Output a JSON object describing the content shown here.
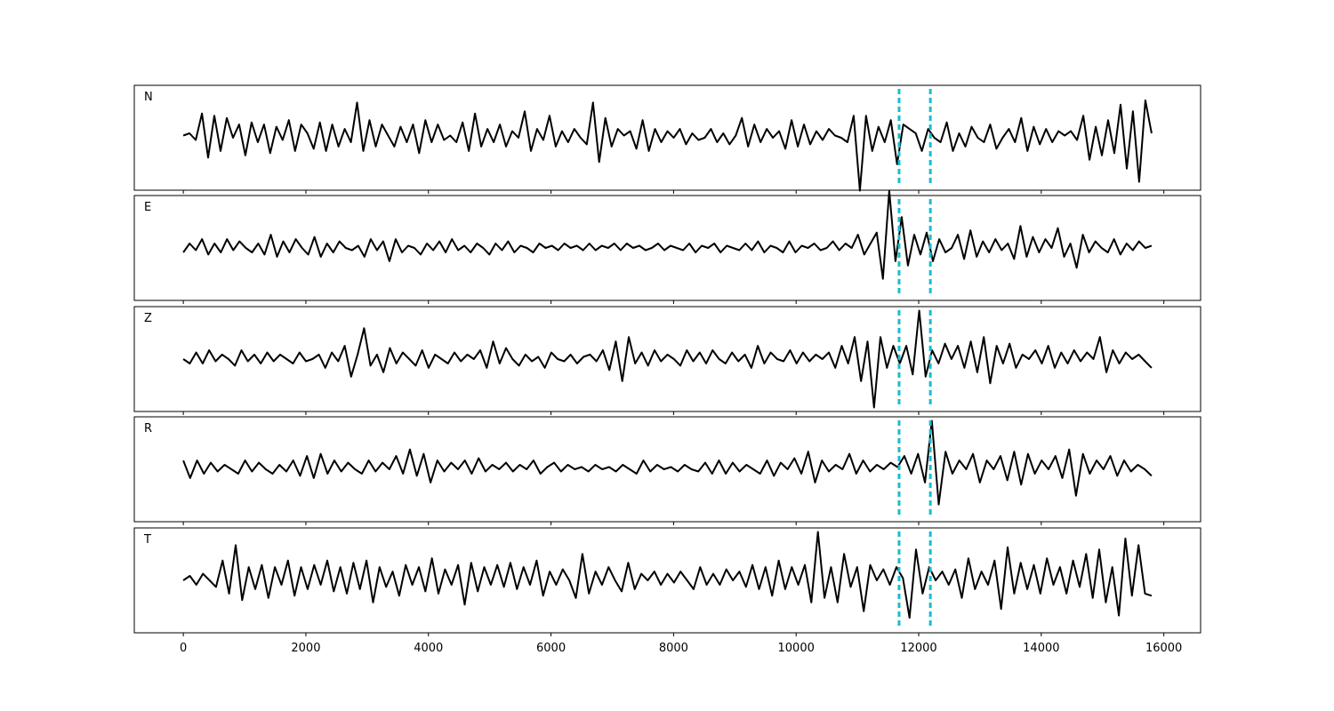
{
  "chart_data": {
    "type": "line",
    "title": "",
    "xlabel": "",
    "ylabel": "",
    "x_range": [
      0,
      15800
    ],
    "xlim": [
      -800,
      16600
    ],
    "x_ticks": [
      0,
      2000,
      4000,
      6000,
      8000,
      10000,
      12000,
      14000,
      16000
    ],
    "x_tick_labels": [
      "0",
      "2000",
      "4000",
      "6000",
      "8000",
      "10000",
      "12000",
      "14000",
      "16000"
    ],
    "y_axis_shown": false,
    "grid": false,
    "legend": "none",
    "markers": [
      11680,
      12190
    ],
    "colors": {
      "trace": "#000000",
      "marker": "#17BECF"
    },
    "panels": [
      {
        "label": "N",
        "y": [
          0.05,
          0.1,
          -0.05,
          0.55,
          -0.45,
          0.5,
          -0.3,
          0.45,
          0.0,
          0.3,
          -0.4,
          0.35,
          -0.1,
          0.3,
          -0.35,
          0.25,
          -0.05,
          0.4,
          -0.3,
          0.3,
          0.1,
          -0.25,
          0.35,
          -0.3,
          0.3,
          -0.2,
          0.2,
          -0.1,
          0.8,
          -0.3,
          0.4,
          -0.2,
          0.3,
          0.05,
          -0.2,
          0.25,
          -0.1,
          0.3,
          -0.35,
          0.4,
          -0.1,
          0.3,
          -0.05,
          0.05,
          -0.1,
          0.35,
          -0.3,
          0.55,
          -0.2,
          0.2,
          -0.1,
          0.3,
          -0.2,
          0.15,
          0.0,
          0.6,
          -0.3,
          0.2,
          -0.05,
          0.5,
          -0.2,
          0.15,
          -0.1,
          0.2,
          0.0,
          -0.15,
          0.8,
          -0.55,
          0.45,
          -0.2,
          0.2,
          0.05,
          0.15,
          -0.25,
          0.4,
          -0.3,
          0.2,
          -0.1,
          0.15,
          0.0,
          0.2,
          -0.15,
          0.1,
          -0.05,
          0.0,
          0.2,
          -0.1,
          0.1,
          -0.15,
          0.05,
          0.45,
          -0.2,
          0.3,
          -0.1,
          0.2,
          0.0,
          0.15,
          -0.25,
          0.4,
          -0.2,
          0.3,
          -0.15,
          0.15,
          -0.05,
          0.2,
          0.05,
          0.0,
          -0.1,
          0.5,
          -1.2,
          0.5,
          -0.3,
          0.25,
          -0.1,
          0.4,
          -0.6,
          0.3,
          0.2,
          0.1,
          -0.3,
          0.2,
          0.0,
          -0.1,
          0.35,
          -0.3,
          0.1,
          -0.2,
          0.25,
          0.0,
          -0.1,
          0.3,
          -0.25,
          0.0,
          0.2,
          -0.1,
          0.45,
          -0.3,
          0.25,
          -0.15,
          0.2,
          -0.1,
          0.15,
          0.05,
          0.15,
          -0.05,
          0.5,
          -0.5,
          0.25,
          -0.4,
          0.4,
          -0.35,
          0.75,
          -0.7,
          0.6,
          -1.0,
          0.85,
          0.1
        ]
      },
      {
        "label": "E",
        "y": [
          -0.1,
          0.1,
          -0.05,
          0.2,
          -0.15,
          0.1,
          -0.1,
          0.2,
          -0.05,
          0.15,
          0.0,
          -0.1,
          0.1,
          -0.15,
          0.3,
          -0.2,
          0.15,
          -0.1,
          0.2,
          0.0,
          -0.15,
          0.25,
          -0.2,
          0.1,
          -0.1,
          0.15,
          0.0,
          -0.05,
          0.05,
          -0.2,
          0.2,
          -0.05,
          0.15,
          -0.3,
          0.2,
          -0.1,
          0.05,
          0.0,
          -0.15,
          0.1,
          -0.05,
          0.15,
          -0.1,
          0.2,
          -0.05,
          0.05,
          -0.1,
          0.1,
          0.0,
          -0.15,
          0.1,
          -0.05,
          0.15,
          -0.1,
          0.05,
          0.0,
          -0.1,
          0.1,
          0.0,
          0.05,
          -0.05,
          0.1,
          0.0,
          0.05,
          -0.05,
          0.1,
          -0.05,
          0.05,
          0.0,
          0.1,
          -0.05,
          0.1,
          0.0,
          0.05,
          -0.05,
          0.0,
          0.1,
          -0.05,
          0.05,
          0.0,
          -0.05,
          0.1,
          -0.1,
          0.05,
          0.0,
          0.1,
          -0.1,
          0.05,
          0.0,
          -0.05,
          0.1,
          -0.05,
          0.15,
          -0.1,
          0.05,
          0.0,
          -0.1,
          0.15,
          -0.1,
          0.05,
          0.0,
          0.1,
          -0.05,
          0.0,
          0.15,
          -0.05,
          0.1,
          0.0,
          0.3,
          -0.15,
          0.1,
          0.35,
          -0.7,
          1.3,
          -0.3,
          0.7,
          -0.4,
          0.3,
          -0.15,
          0.35,
          -0.3,
          0.2,
          -0.1,
          0.0,
          0.3,
          -0.25,
          0.4,
          -0.2,
          0.15,
          -0.1,
          0.2,
          -0.05,
          0.1,
          -0.25,
          0.5,
          -0.2,
          0.25,
          -0.1,
          0.2,
          0.0,
          0.45,
          -0.2,
          0.1,
          -0.45,
          0.3,
          -0.1,
          0.15,
          0.0,
          -0.1,
          0.2,
          -0.15,
          0.1,
          -0.05,
          0.15,
          0.0,
          0.05
        ]
      },
      {
        "label": "Z",
        "y": [
          0.0,
          -0.1,
          0.15,
          -0.1,
          0.2,
          -0.05,
          0.1,
          0.0,
          -0.15,
          0.2,
          -0.05,
          0.1,
          -0.1,
          0.15,
          -0.05,
          0.1,
          0.0,
          -0.1,
          0.15,
          -0.05,
          0.0,
          0.1,
          -0.2,
          0.15,
          -0.05,
          0.3,
          -0.4,
          0.1,
          0.7,
          -0.15,
          0.1,
          -0.3,
          0.25,
          -0.1,
          0.15,
          0.0,
          -0.15,
          0.2,
          -0.2,
          0.1,
          0.0,
          -0.1,
          0.15,
          -0.05,
          0.1,
          0.0,
          0.2,
          -0.2,
          0.4,
          -0.1,
          0.25,
          0.0,
          -0.15,
          0.1,
          -0.05,
          0.05,
          -0.2,
          0.15,
          0.0,
          -0.05,
          0.1,
          -0.1,
          0.05,
          0.1,
          -0.05,
          0.2,
          -0.25,
          0.4,
          -0.5,
          0.5,
          -0.1,
          0.15,
          -0.15,
          0.2,
          -0.05,
          0.1,
          0.0,
          -0.15,
          0.2,
          -0.05,
          0.15,
          -0.1,
          0.2,
          0.0,
          -0.1,
          0.15,
          -0.05,
          0.1,
          -0.2,
          0.3,
          -0.1,
          0.15,
          0.0,
          -0.05,
          0.2,
          -0.1,
          0.15,
          -0.05,
          0.1,
          0.0,
          0.15,
          -0.2,
          0.3,
          -0.1,
          0.5,
          -0.5,
          0.4,
          -1.1,
          0.5,
          -0.2,
          0.3,
          -0.1,
          0.3,
          -0.35,
          1.1,
          -0.4,
          0.2,
          -0.1,
          0.35,
          0.0,
          0.3,
          -0.2,
          0.4,
          -0.3,
          0.5,
          -0.55,
          0.3,
          -0.1,
          0.35,
          -0.2,
          0.1,
          0.0,
          0.2,
          -0.1,
          0.3,
          -0.2,
          0.15,
          -0.1,
          0.2,
          -0.05,
          0.15,
          0.0,
          0.5,
          -0.3,
          0.2,
          -0.1,
          0.15,
          0.0,
          0.1,
          -0.05,
          -0.2
        ]
      },
      {
        "label": "R",
        "y": [
          0.2,
          -0.2,
          0.2,
          -0.1,
          0.15,
          -0.05,
          0.1,
          0.0,
          -0.1,
          0.2,
          -0.05,
          0.15,
          0.0,
          -0.1,
          0.1,
          -0.05,
          0.2,
          -0.15,
          0.3,
          -0.2,
          0.35,
          -0.1,
          0.2,
          -0.05,
          0.15,
          0.0,
          -0.1,
          0.2,
          -0.05,
          0.15,
          0.0,
          0.3,
          -0.1,
          0.45,
          -0.15,
          0.35,
          -0.3,
          0.2,
          -0.05,
          0.15,
          0.0,
          0.2,
          -0.1,
          0.25,
          -0.05,
          0.1,
          0.0,
          0.15,
          -0.05,
          0.1,
          0.0,
          0.2,
          -0.1,
          0.05,
          0.15,
          -0.05,
          0.1,
          0.0,
          0.05,
          -0.05,
          0.1,
          0.0,
          0.05,
          -0.05,
          0.1,
          0.0,
          -0.1,
          0.2,
          -0.05,
          0.1,
          0.0,
          0.05,
          -0.05,
          0.1,
          0.0,
          -0.05,
          0.15,
          -0.1,
          0.2,
          -0.1,
          0.15,
          -0.05,
          0.1,
          0.0,
          -0.1,
          0.2,
          -0.15,
          0.15,
          0.0,
          0.25,
          -0.1,
          0.4,
          -0.3,
          0.2,
          -0.05,
          0.1,
          0.0,
          0.35,
          -0.1,
          0.2,
          -0.05,
          0.1,
          0.0,
          0.15,
          0.05,
          0.3,
          -0.1,
          0.35,
          -0.3,
          1.1,
          -0.8,
          0.4,
          -0.1,
          0.2,
          0.0,
          0.35,
          -0.3,
          0.2,
          0.0,
          0.3,
          -0.25,
          0.4,
          -0.35,
          0.35,
          -0.1,
          0.2,
          0.0,
          0.3,
          -0.2,
          0.45,
          -0.6,
          0.35,
          -0.1,
          0.2,
          0.0,
          0.3,
          -0.15,
          0.2,
          -0.05,
          0.1,
          0.0,
          -0.15
        ]
      },
      {
        "label": "T",
        "y": [
          0.0,
          0.1,
          -0.1,
          0.15,
          0.0,
          -0.15,
          0.45,
          -0.3,
          0.8,
          -0.45,
          0.3,
          -0.2,
          0.35,
          -0.4,
          0.3,
          -0.1,
          0.45,
          -0.35,
          0.3,
          -0.2,
          0.35,
          -0.1,
          0.45,
          -0.25,
          0.3,
          -0.3,
          0.4,
          -0.2,
          0.45,
          -0.5,
          0.3,
          -0.15,
          0.2,
          -0.35,
          0.35,
          -0.1,
          0.3,
          -0.25,
          0.5,
          -0.3,
          0.25,
          -0.1,
          0.35,
          -0.55,
          0.4,
          -0.25,
          0.3,
          -0.1,
          0.35,
          -0.15,
          0.4,
          -0.2,
          0.3,
          -0.1,
          0.45,
          -0.35,
          0.2,
          -0.1,
          0.25,
          0.0,
          -0.4,
          0.6,
          -0.3,
          0.2,
          -0.1,
          0.3,
          0.0,
          -0.25,
          0.4,
          -0.2,
          0.15,
          0.0,
          0.2,
          -0.1,
          0.15,
          -0.05,
          0.2,
          0.0,
          -0.2,
          0.3,
          -0.1,
          0.15,
          -0.1,
          0.25,
          0.0,
          0.2,
          -0.15,
          0.35,
          -0.2,
          0.3,
          -0.35,
          0.45,
          -0.2,
          0.3,
          -0.1,
          0.35,
          -0.5,
          1.1,
          -0.4,
          0.3,
          -0.5,
          0.6,
          -0.15,
          0.3,
          -0.7,
          0.35,
          0.0,
          0.25,
          -0.1,
          0.3,
          0.05,
          -0.85,
          0.7,
          -0.3,
          0.3,
          0.0,
          0.2,
          -0.1,
          0.25,
          -0.4,
          0.5,
          -0.2,
          0.2,
          -0.1,
          0.45,
          -0.65,
          0.75,
          -0.3,
          0.4,
          -0.2,
          0.35,
          -0.3,
          0.5,
          -0.1,
          0.3,
          -0.3,
          0.45,
          -0.15,
          0.6,
          -0.4,
          0.7,
          -0.5,
          0.3,
          -0.8,
          0.95,
          -0.35,
          0.8,
          -0.3,
          -0.35
        ]
      }
    ]
  }
}
